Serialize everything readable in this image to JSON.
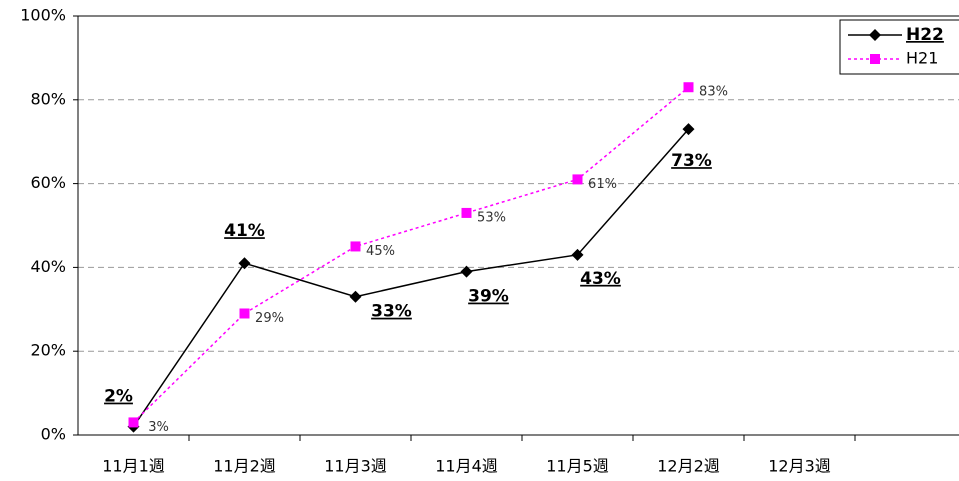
{
  "chart_data": {
    "type": "line",
    "categories": [
      "11月1週",
      "11月2週",
      "11月3週",
      "11月4週",
      "11月5週",
      "12月2週",
      "12月3週",
      null
    ],
    "series": [
      {
        "name": "H22",
        "color": "#000000",
        "values": [
          2,
          41,
          33,
          39,
          43,
          73,
          null,
          null
        ],
        "value_labels": [
          "2%",
          "41%",
          "33%",
          "39%",
          "43%",
          "73%",
          null,
          null
        ]
      },
      {
        "name": "H21",
        "color": "#ff00ff",
        "values": [
          3,
          29,
          45,
          53,
          61,
          83,
          null,
          null
        ],
        "value_labels": [
          "3%",
          "29%",
          "45%",
          "53%",
          "61%",
          "83%",
          null,
          null
        ]
      }
    ],
    "ylim": [
      0,
      100
    ],
    "yticks": [
      {
        "value": 0,
        "label": "0%"
      },
      {
        "value": 20,
        "label": "20%"
      },
      {
        "value": 40,
        "label": "40%"
      },
      {
        "value": 60,
        "label": "60%"
      },
      {
        "value": 80,
        "label": "80%"
      },
      {
        "value": 100,
        "label": "100%"
      }
    ],
    "grid": true,
    "legend": "top-right"
  }
}
